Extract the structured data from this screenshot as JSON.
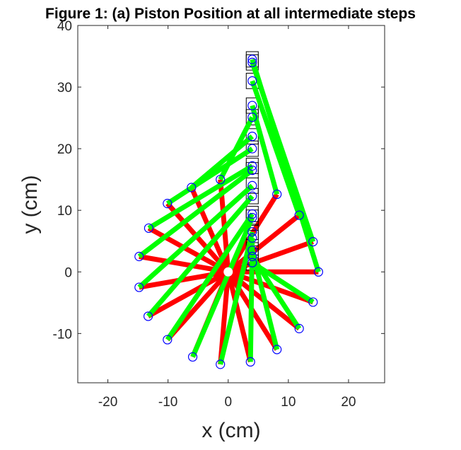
{
  "chart_data": {
    "type": "line",
    "title": "Figure 1: (a) Piston Position at all intermediate steps",
    "xlabel": "x (cm)",
    "ylabel": "y (cm)",
    "xlim": [
      -25,
      26
    ],
    "ylim": [
      -18,
      40
    ],
    "xticks": [
      -20,
      -10,
      0,
      10,
      20
    ],
    "yticks": [
      -10,
      0,
      10,
      20,
      30,
      40
    ],
    "grid": false,
    "crank_pivot": [
      0,
      0
    ],
    "crank_ends": [
      [
        15.0,
        0.0
      ],
      [
        14.1,
        4.9
      ],
      [
        11.8,
        9.2
      ],
      [
        8.1,
        12.6
      ],
      [
        -1.3,
        15.0
      ],
      [
        -6.1,
        13.7
      ],
      [
        -10.1,
        11.1
      ],
      [
        -13.2,
        7.1
      ],
      [
        -14.8,
        2.5
      ],
      [
        -14.8,
        -2.5
      ],
      [
        -13.3,
        -7.2
      ],
      [
        -10.1,
        -11.0
      ],
      [
        -5.9,
        -13.8
      ],
      [
        -1.3,
        -15.0
      ],
      [
        3.7,
        -14.6
      ],
      [
        8.1,
        -12.6
      ],
      [
        11.8,
        -9.2
      ],
      [
        14.1,
        -4.9
      ]
    ],
    "piston_positions": [
      [
        4,
        34.5
      ],
      [
        4,
        34.0
      ],
      [
        4,
        31.0
      ],
      [
        4,
        27.0
      ],
      [
        4,
        25.1
      ],
      [
        4,
        22.0
      ],
      [
        4,
        20.0
      ],
      [
        4,
        17.2
      ],
      [
        4,
        16.5
      ],
      [
        4,
        14.0
      ],
      [
        4,
        12.3
      ],
      [
        4,
        9.4
      ],
      [
        4,
        8.8
      ],
      [
        4,
        6.5
      ],
      [
        4,
        5.5
      ],
      [
        4,
        3.5
      ],
      [
        4,
        2.5
      ],
      [
        4,
        1.5
      ]
    ],
    "series": [
      {
        "name": "crank",
        "color": "#ff0000"
      },
      {
        "name": "connecting rod",
        "color": "#00ff00"
      },
      {
        "name": "piston",
        "color": "#000000"
      }
    ],
    "marker_color": "#0000ff"
  }
}
